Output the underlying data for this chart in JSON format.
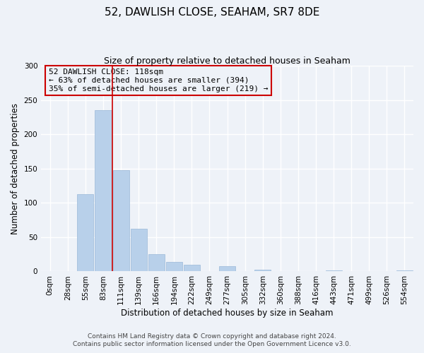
{
  "title": "52, DAWLISH CLOSE, SEAHAM, SR7 8DE",
  "subtitle": "Size of property relative to detached houses in Seaham",
  "xlabel": "Distribution of detached houses by size in Seaham",
  "ylabel": "Number of detached properties",
  "bar_labels": [
    "0sqm",
    "28sqm",
    "55sqm",
    "83sqm",
    "111sqm",
    "139sqm",
    "166sqm",
    "194sqm",
    "222sqm",
    "249sqm",
    "277sqm",
    "305sqm",
    "332sqm",
    "360sqm",
    "388sqm",
    "416sqm",
    "443sqm",
    "471sqm",
    "499sqm",
    "526sqm",
    "554sqm"
  ],
  "bar_heights": [
    0,
    0,
    113,
    235,
    148,
    62,
    25,
    14,
    10,
    0,
    8,
    0,
    3,
    0,
    0,
    0,
    1,
    0,
    0,
    0,
    1
  ],
  "bar_color": "#b8d0ea",
  "bar_edge_color": "#9ab8d8",
  "property_line_x": 3.5,
  "property_line_color": "#cc0000",
  "annotation_line1": "52 DAWLISH CLOSE: 118sqm",
  "annotation_line2": "← 63% of detached houses are smaller (394)",
  "annotation_line3": "35% of semi-detached houses are larger (219) →",
  "annotation_box_edge_color": "#cc0000",
  "ylim": [
    0,
    300
  ],
  "yticks": [
    0,
    50,
    100,
    150,
    200,
    250,
    300
  ],
  "footer_line1": "Contains HM Land Registry data © Crown copyright and database right 2024.",
  "footer_line2": "Contains public sector information licensed under the Open Government Licence v3.0.",
  "bg_color": "#eef2f8",
  "plot_bg_color": "#eef2f8",
  "title_fontsize": 11,
  "subtitle_fontsize": 9,
  "axis_label_fontsize": 8.5,
  "tick_fontsize": 7.5,
  "footer_fontsize": 6.5
}
